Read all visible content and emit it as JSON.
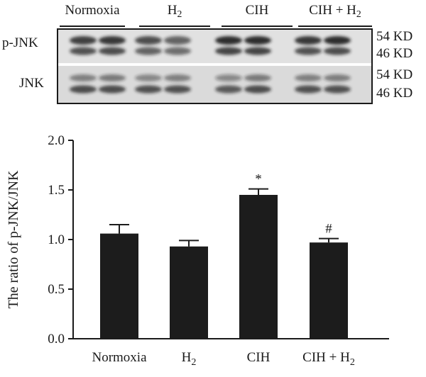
{
  "blot": {
    "groups": [
      {
        "label": "Normoxia",
        "sub": ""
      },
      {
        "label": "H",
        "sub": "2"
      },
      {
        "label": "CIH",
        "sub": ""
      },
      {
        "label": "CIH + H",
        "sub": "2"
      }
    ],
    "rows": [
      {
        "label": "p-JNK",
        "sizes": [
          "54 KD",
          "46 KD"
        ]
      },
      {
        "label": "JNK",
        "sizes": [
          "54 KD",
          "46 KD"
        ]
      }
    ],
    "colors": {
      "band": "#1e1e1e",
      "background": "#f0f0f0"
    }
  },
  "chart_data": {
    "type": "bar",
    "categories": [
      {
        "label": "Normoxia",
        "sub": ""
      },
      {
        "label": "H",
        "sub": "2"
      },
      {
        "label": "CIH",
        "sub": ""
      },
      {
        "label": "CIH + H",
        "sub": "2"
      }
    ],
    "values": [
      1.06,
      0.93,
      1.45,
      0.97
    ],
    "errors": [
      0.09,
      0.06,
      0.06,
      0.04
    ],
    "annotations": [
      "",
      "",
      "*",
      "#"
    ],
    "ylabel": "The ratio of p-JNK/JNK",
    "ylim": [
      0,
      2.0
    ],
    "yticks": [
      "0.0",
      "0.5",
      "1.0",
      "1.5",
      "2.0"
    ],
    "grid": false,
    "colors": {
      "bar": "#1c1c1c",
      "axis": "#1a1a1a"
    }
  }
}
